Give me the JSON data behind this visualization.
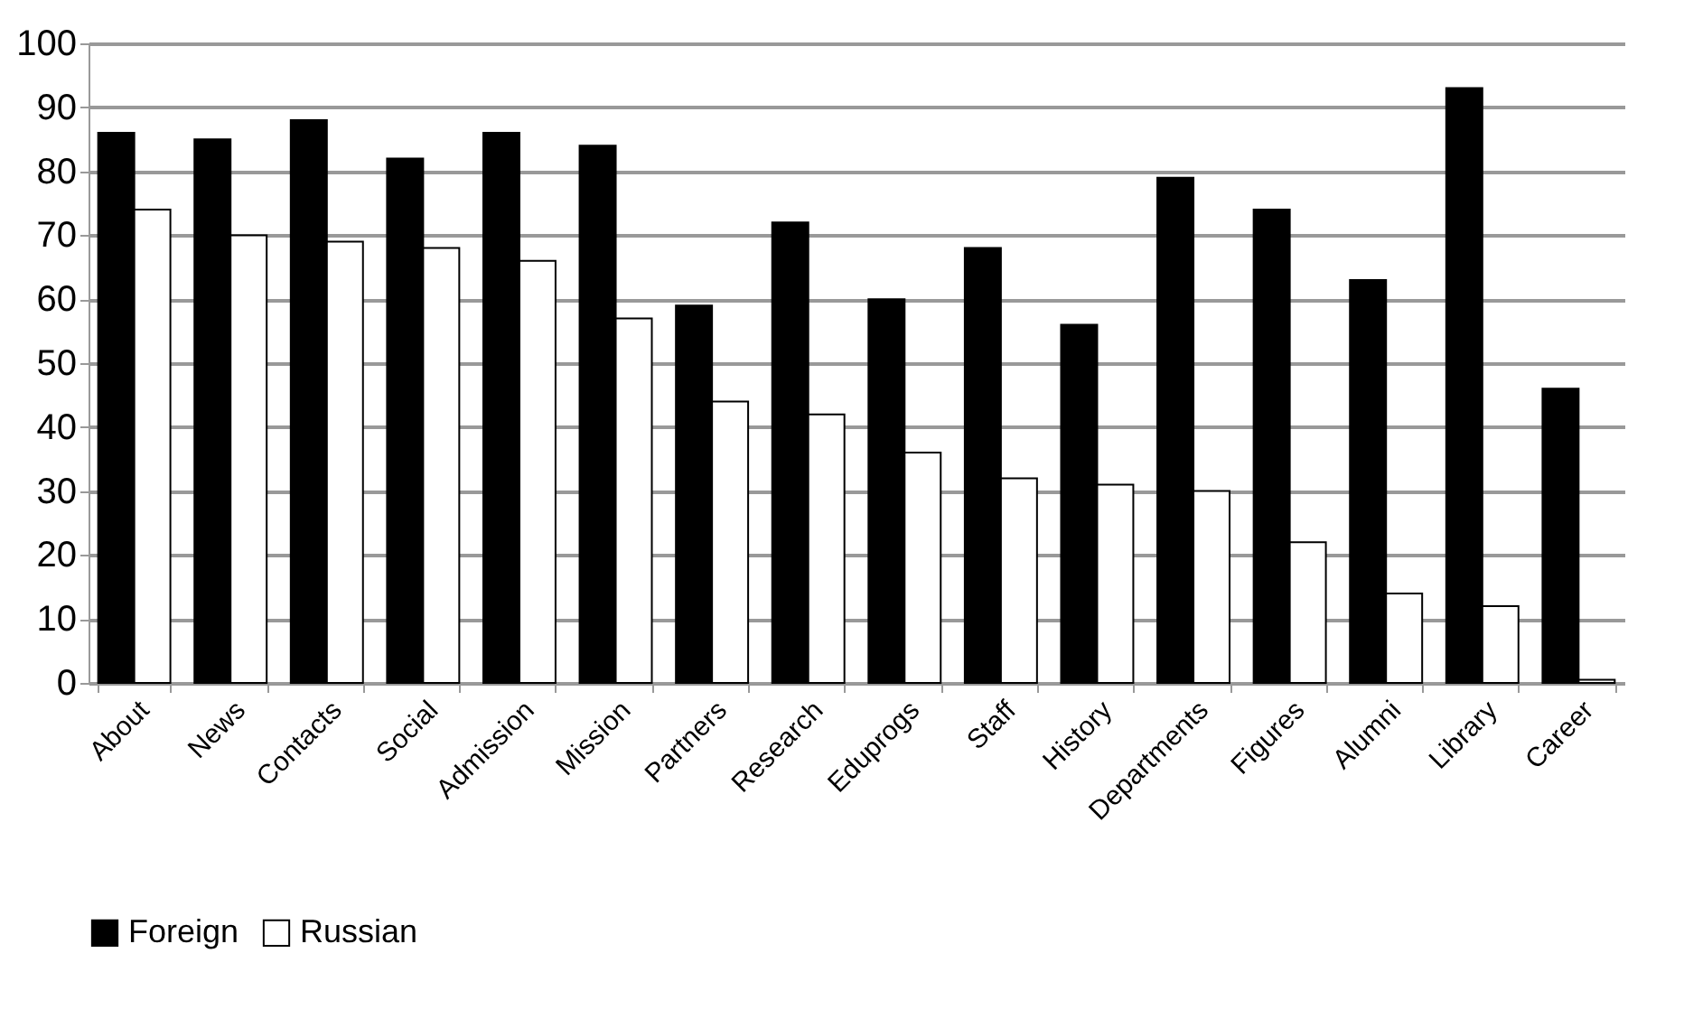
{
  "chart_data": {
    "type": "bar",
    "categories": [
      "About",
      "News",
      "Contacts",
      "Social",
      "Admission",
      "Mission",
      "Partners",
      "Research",
      "Eduprogs",
      "Staff",
      "History",
      "Departments",
      "Figures",
      "Alumni",
      "Library",
      "Career"
    ],
    "series": [
      {
        "name": "Foreign",
        "color": "#000000",
        "values": [
          86,
          85,
          88,
          82,
          86,
          84,
          59,
          72,
          60,
          68,
          56,
          79,
          74,
          63,
          93,
          46
        ]
      },
      {
        "name": "Russian",
        "color": "#ffffff",
        "values": [
          74,
          70,
          69,
          68,
          66,
          57,
          44,
          42,
          36,
          32,
          31,
          30,
          22,
          14,
          12,
          0.5
        ]
      }
    ],
    "ylim": [
      0,
      100
    ],
    "yticks": [
      0,
      10,
      20,
      30,
      40,
      50,
      60,
      70,
      80,
      90,
      100
    ],
    "grid": "y",
    "legend": "bottom"
  }
}
